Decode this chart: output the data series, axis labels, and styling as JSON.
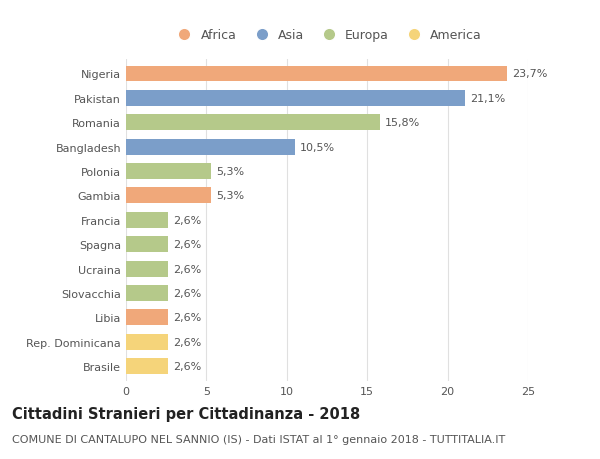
{
  "countries": [
    "Nigeria",
    "Pakistan",
    "Romania",
    "Bangladesh",
    "Polonia",
    "Gambia",
    "Francia",
    "Spagna",
    "Ucraina",
    "Slovacchia",
    "Libia",
    "Rep. Dominicana",
    "Brasile"
  ],
  "values": [
    23.7,
    21.1,
    15.8,
    10.5,
    5.3,
    5.3,
    2.6,
    2.6,
    2.6,
    2.6,
    2.6,
    2.6,
    2.6
  ],
  "labels": [
    "23,7%",
    "21,1%",
    "15,8%",
    "10,5%",
    "5,3%",
    "5,3%",
    "2,6%",
    "2,6%",
    "2,6%",
    "2,6%",
    "2,6%",
    "2,6%",
    "2,6%"
  ],
  "continents": [
    "Africa",
    "Asia",
    "Europa",
    "Asia",
    "Europa",
    "Africa",
    "Europa",
    "Europa",
    "Europa",
    "Europa",
    "Africa",
    "America",
    "America"
  ],
  "colors": {
    "Africa": "#F0A87A",
    "Asia": "#7B9EC9",
    "Europa": "#B5C98A",
    "America": "#F5D47A"
  },
  "legend_order": [
    "Africa",
    "Asia",
    "Europa",
    "America"
  ],
  "title": "Cittadini Stranieri per Cittadinanza - 2018",
  "subtitle": "COMUNE DI CANTALUPO NEL SANNIO (IS) - Dati ISTAT al 1° gennaio 2018 - TUTTITALIA.IT",
  "xlim": [
    0,
    25
  ],
  "xticks": [
    0,
    5,
    10,
    15,
    20,
    25
  ],
  "background_color": "#ffffff",
  "grid_color": "#e0e0e0",
  "bar_height": 0.65,
  "title_fontsize": 10.5,
  "subtitle_fontsize": 8,
  "label_fontsize": 8,
  "tick_fontsize": 8,
  "legend_fontsize": 9,
  "text_color": "#555555",
  "title_color": "#222222"
}
